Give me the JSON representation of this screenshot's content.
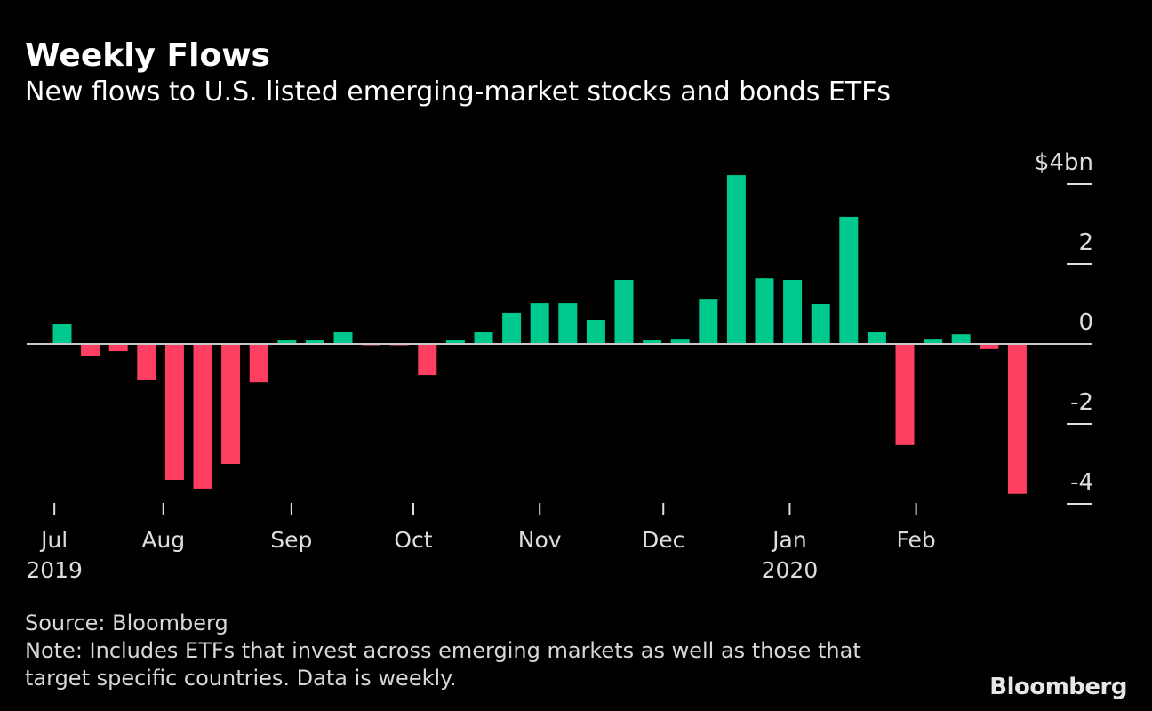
{
  "title": "Weekly Flows",
  "subtitle": "New flows to U.S. listed emerging-market stocks and bonds ETFs",
  "source": "Source: Bloomberg",
  "note_line1": "Note: Includes ETFs that invest across emerging markets as well as those that",
  "note_line2": "target specific countries. Data is weekly.",
  "logo": "Bloomberg",
  "colors": {
    "positive": "#00c98d",
    "negative": "#ff3f62",
    "background": "#000000",
    "axis": "#c8c8c8"
  },
  "chart_data": {
    "type": "bar",
    "title": "Weekly Flows",
    "ylabel": "$bn",
    "ylim": [
      -4,
      4
    ],
    "yticks": [
      4,
      2,
      0,
      -2,
      -4
    ],
    "ytick_labels": [
      "$4bn",
      "2",
      "0",
      "-2",
      "-4"
    ],
    "x_period": "Jul 2019 - Feb 2020, weekly",
    "values": [
      0.51,
      -0.31,
      -0.18,
      -0.91,
      -3.4,
      -3.62,
      -3.0,
      -0.96,
      0.09,
      0.09,
      0.29,
      -0.03,
      -0.03,
      -0.78,
      0.09,
      0.29,
      0.78,
      1.02,
      1.02,
      0.6,
      1.6,
      0.09,
      0.13,
      1.13,
      4.22,
      1.64,
      1.6,
      1.0,
      3.18,
      0.29,
      -2.53,
      0.13,
      0.24,
      -0.13,
      -3.75
    ],
    "month_ticks": [
      {
        "label": "Jul",
        "year": "2019",
        "week_pos": -0.28
      },
      {
        "label": "Aug",
        "year": "",
        "week_pos": 3.6
      },
      {
        "label": "Sep",
        "year": "",
        "week_pos": 8.16
      },
      {
        "label": "Oct",
        "year": "",
        "week_pos": 12.5
      },
      {
        "label": "Nov",
        "year": "",
        "week_pos": 17.0
      },
      {
        "label": "Dec",
        "year": "",
        "week_pos": 21.4
      },
      {
        "label": "Jan",
        "year": "2020",
        "week_pos": 25.9
      },
      {
        "label": "Feb",
        "year": "",
        "week_pos": 30.4
      }
    ]
  }
}
